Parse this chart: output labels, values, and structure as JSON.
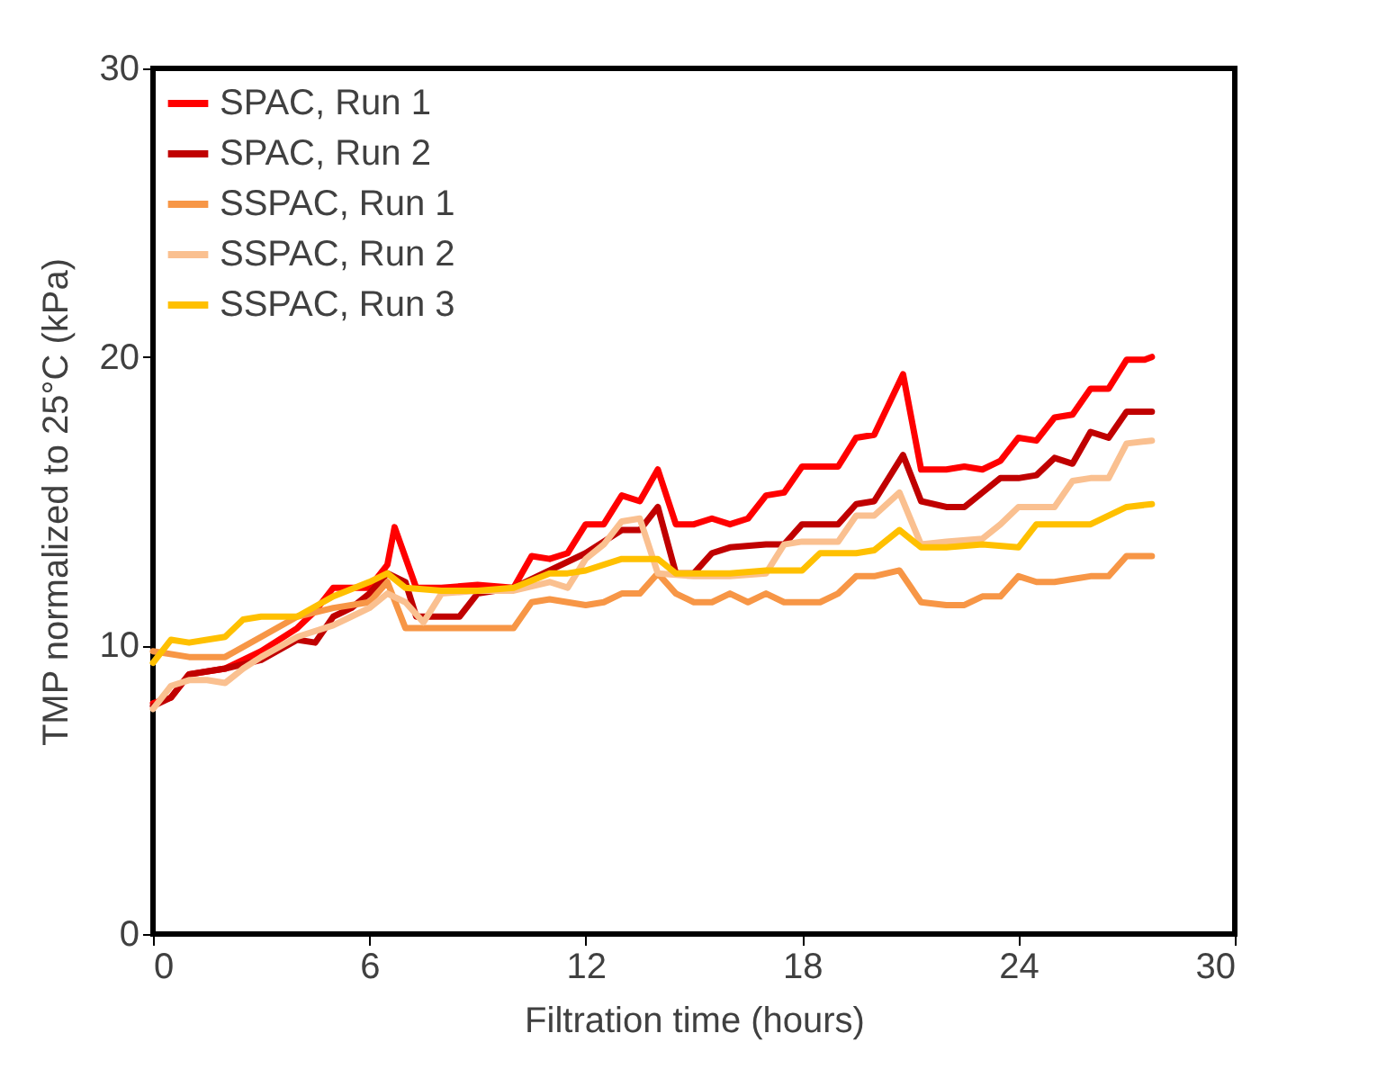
{
  "chart_data": {
    "type": "line",
    "xlabel": "Filtration time (hours)",
    "ylabel": "TMP normalized to 25°C (kPa)",
    "xlim": [
      0,
      30
    ],
    "xticks": [
      0,
      6,
      12,
      18,
      24,
      30
    ],
    "ylim": [
      0,
      30
    ],
    "yticks": [
      0,
      10,
      20,
      30
    ],
    "grid": false,
    "legend": "top left",
    "marker": "none",
    "line_style": "solid",
    "series": [
      {
        "name": "SPAC, Run 1",
        "color": "#ff0000",
        "x": [
          0,
          0.5,
          1,
          2,
          3,
          4,
          4.5,
          5,
          6,
          6.5,
          6.7,
          7.3,
          8,
          9,
          10,
          10.5,
          11,
          11.5,
          12,
          12.5,
          13,
          13.5,
          14,
          14.5,
          15,
          15.5,
          16,
          16.5,
          17,
          17.5,
          18,
          19,
          19.5,
          20,
          20.8,
          21.3,
          22,
          22.5,
          23,
          23.5,
          24,
          24.5,
          25,
          25.5,
          26,
          26.5,
          27,
          27.5,
          27.7
        ],
        "values": [
          8,
          8.2,
          9,
          9.2,
          9.8,
          10.6,
          11.2,
          12,
          12,
          12.8,
          14.1,
          12,
          12,
          12.1,
          12,
          13.1,
          13,
          13.2,
          14.2,
          14.2,
          15.2,
          15,
          16.1,
          14.2,
          14.2,
          14.4,
          14.2,
          14.4,
          15.2,
          15.3,
          16.2,
          16.2,
          17.2,
          17.3,
          19.4,
          16.1,
          16.1,
          16.2,
          16.1,
          16.4,
          17.2,
          17.1,
          17.9,
          18,
          18.9,
          18.9,
          19.9,
          19.9,
          20
        ]
      },
      {
        "name": "SPAC, Run 2",
        "color": "#c00000",
        "x": [
          0,
          0.5,
          1,
          2,
          3,
          4,
          4.5,
          5,
          5.5,
          6,
          6.5,
          7,
          7.3,
          8,
          8.5,
          9,
          10,
          11,
          12,
          12.5,
          13,
          13.5,
          14,
          14.5,
          15,
          15.5,
          16,
          17,
          17.5,
          18,
          19,
          19.5,
          20,
          20.8,
          21.3,
          22,
          22.5,
          23,
          23.5,
          24,
          24.5,
          25,
          25.5,
          26,
          26.5,
          27,
          27.7
        ],
        "values": [
          7.9,
          8.2,
          9,
          9.2,
          9.5,
          10.2,
          10.1,
          11,
          11.3,
          11.8,
          12.5,
          12.2,
          11,
          11,
          11,
          11.8,
          12,
          12.6,
          13.2,
          13.6,
          14,
          14,
          14.8,
          12.5,
          12.5,
          13.2,
          13.4,
          13.5,
          13.5,
          14.2,
          14.2,
          14.9,
          15,
          16.6,
          15,
          14.8,
          14.8,
          15.3,
          15.8,
          15.8,
          15.9,
          16.5,
          16.3,
          17.4,
          17.2,
          18.1,
          18.1
        ]
      },
      {
        "name": "SSPAC, Run 1",
        "color": "#f79646",
        "x": [
          0,
          1,
          2,
          3,
          4,
          5,
          6,
          6.5,
          7,
          8,
          9,
          10,
          10.5,
          11,
          12,
          12.5,
          13,
          13.5,
          14,
          14.5,
          15,
          15.5,
          16,
          16.5,
          17,
          17.5,
          18,
          18.5,
          19,
          19.5,
          20,
          20.7,
          21.3,
          22,
          22.5,
          23,
          23.5,
          24,
          24.5,
          25,
          25.5,
          26,
          26.5,
          27,
          27.7
        ],
        "values": [
          9.8,
          9.6,
          9.6,
          10.3,
          11,
          11.3,
          11.5,
          12.2,
          10.6,
          10.6,
          10.6,
          10.6,
          11.5,
          11.6,
          11.4,
          11.5,
          11.8,
          11.8,
          12.5,
          11.8,
          11.5,
          11.5,
          11.8,
          11.5,
          11.8,
          11.5,
          11.5,
          11.5,
          11.8,
          12.4,
          12.4,
          12.6,
          11.5,
          11.4,
          11.4,
          11.7,
          11.7,
          12.4,
          12.2,
          12.2,
          12.3,
          12.4,
          12.4,
          13.1,
          13.1
        ]
      },
      {
        "name": "SSPAC, Run 2",
        "color": "#fac090",
        "x": [
          0,
          0.5,
          1,
          1.5,
          2,
          2.5,
          3,
          4,
          5,
          5.5,
          6,
          6.5,
          7,
          7.5,
          8,
          9,
          10,
          11,
          11.5,
          12,
          12.5,
          13,
          13.5,
          14,
          15,
          16,
          17,
          17.5,
          18,
          19,
          19.5,
          20,
          20.7,
          21.3,
          22,
          23,
          23.5,
          24,
          25,
          25.5,
          26,
          26.5,
          27,
          27.7
        ],
        "values": [
          7.8,
          8.6,
          8.8,
          8.8,
          8.7,
          9.2,
          9.6,
          10.3,
          10.7,
          11,
          11.3,
          11.8,
          11.5,
          10.8,
          11.8,
          11.9,
          11.9,
          12.2,
          12,
          13,
          13.5,
          14.3,
          14.4,
          12.5,
          12.4,
          12.4,
          12.5,
          13.5,
          13.6,
          13.6,
          14.5,
          14.5,
          15.3,
          13.5,
          13.6,
          13.7,
          14.2,
          14.8,
          14.8,
          15.7,
          15.8,
          15.8,
          17,
          17.1
        ]
      },
      {
        "name": "SSPAC, Run 3",
        "color": "#ffc000",
        "x": [
          0,
          0.5,
          1,
          2,
          2.5,
          3,
          4,
          5,
          6,
          6.5,
          7,
          8,
          9,
          10,
          11,
          11.5,
          12,
          13,
          14,
          14.5,
          15,
          16,
          17,
          18,
          18.5,
          19.5,
          20,
          20.7,
          21.3,
          22,
          23,
          24,
          24.5,
          25.5,
          26,
          27,
          27.7
        ],
        "values": [
          9.4,
          10.2,
          10.1,
          10.3,
          10.9,
          11,
          11,
          11.7,
          12.2,
          12.5,
          12,
          11.9,
          11.9,
          12,
          12.5,
          12.5,
          12.6,
          13,
          13,
          12.5,
          12.5,
          12.5,
          12.6,
          12.6,
          13.2,
          13.2,
          13.3,
          14,
          13.4,
          13.4,
          13.5,
          13.4,
          14.2,
          14.2,
          14.2,
          14.8,
          14.9
        ]
      }
    ]
  }
}
